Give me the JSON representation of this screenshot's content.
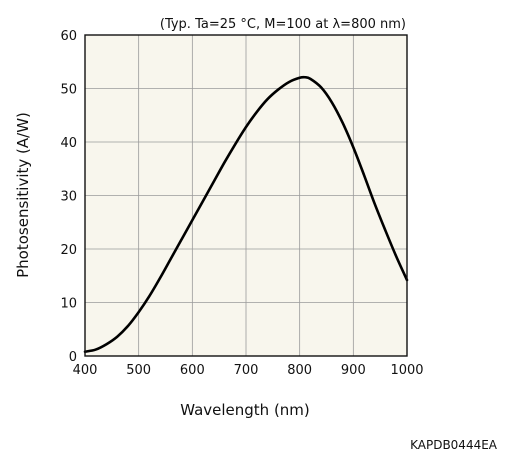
{
  "chart_data": {
    "type": "line",
    "title": "",
    "condition_note": "(Typ. Ta=25 °C, M=100 at λ=800 nm)",
    "xlabel": "Wavelength (nm)",
    "ylabel": "Photosensitivity (A/W)",
    "xlim": [
      400,
      1000
    ],
    "ylim": [
      0,
      60
    ],
    "xticks": [
      400,
      500,
      600,
      700,
      800,
      900,
      1000
    ],
    "yticks": [
      0,
      10,
      20,
      30,
      40,
      50,
      60
    ],
    "grid": true,
    "legend": "none",
    "series": [
      {
        "x": [
          400,
          420,
          440,
          460,
          480,
          500,
          520,
          540,
          560,
          580,
          600,
          620,
          640,
          660,
          680,
          700,
          720,
          740,
          760,
          780,
          800,
          810,
          820,
          840,
          860,
          880,
          900,
          920,
          940,
          960,
          980,
          1000
        ],
        "y": [
          0.8,
          1.2,
          2.2,
          3.6,
          5.6,
          8.2,
          11.2,
          14.6,
          18.2,
          21.8,
          25.4,
          29.0,
          32.6,
          36.2,
          39.6,
          42.8,
          45.6,
          48.0,
          49.8,
          51.2,
          52.0,
          52.1,
          51.8,
          50.2,
          47.4,
          43.6,
          39.0,
          33.8,
          28.4,
          23.4,
          18.6,
          14.2
        ]
      }
    ],
    "colors": {
      "plot_background": "#f8f6ed",
      "grid": "#9a9a9a",
      "frame": "#111111",
      "line": "#000000"
    }
  },
  "figure_code": "KAPDB0444EA"
}
